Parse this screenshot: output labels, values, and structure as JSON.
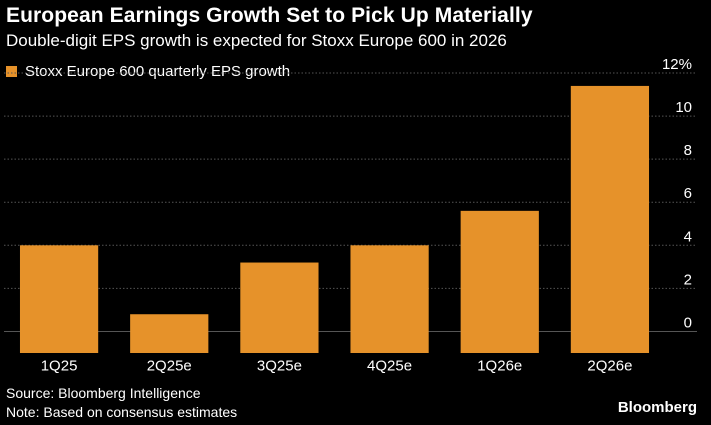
{
  "title": "European Earnings Growth Set to Pick Up Materially",
  "subtitle": "Double-digit EPS growth is expected for Stoxx Europe 600 in 2026",
  "legend_label": "Stoxx Europe 600 quarterly EPS growth",
  "source": "Source: Bloomberg Intelligence",
  "note": "Note: Based on consensus estimates",
  "brand": "Bloomberg",
  "colors": {
    "background": "#000000",
    "bar": "#e6922a",
    "grid": "#555555",
    "text": "#ffffff"
  },
  "chart_data": {
    "type": "bar",
    "categories": [
      "1Q25",
      "2Q25e",
      "3Q25e",
      "4Q25e",
      "1Q26e",
      "2Q26e"
    ],
    "series": [
      {
        "name": "Stoxx Europe 600 quarterly EPS growth",
        "values": [
          4.0,
          0.8,
          3.2,
          4.0,
          5.6,
          11.4
        ]
      }
    ],
    "ylim": [
      -1,
      12
    ],
    "yticks": [
      0,
      2,
      4,
      6,
      8,
      10,
      12
    ],
    "ytick_labels": [
      "0",
      "2",
      "4",
      "6",
      "8",
      "10",
      "12%"
    ],
    "y_axis_side": "right",
    "grid": true,
    "legend_position": "top-left",
    "title": "European Earnings Growth Set to Pick Up Materially",
    "subtitle": "Double-digit EPS growth is expected for Stoxx Europe 600 in 2026",
    "xlabel": "",
    "ylabel": ""
  }
}
